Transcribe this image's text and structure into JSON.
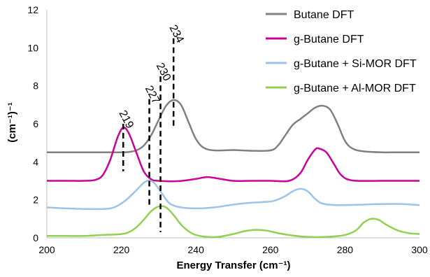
{
  "chart_data": {
    "type": "line",
    "title": "",
    "xlabel": "Energy Transfer (cm⁻¹)",
    "ylabel": "(cm⁻¹)⁻¹",
    "xlim": [
      200,
      300
    ],
    "ylim": [
      0,
      12
    ],
    "xticks": [
      200,
      220,
      240,
      260,
      280,
      300
    ],
    "yticks": [
      0,
      2,
      4,
      6,
      8,
      10,
      12
    ],
    "grid": false,
    "legend": "top-right",
    "series": [
      {
        "name": "Butane DFT",
        "color": "#808080",
        "points": [
          [
            200,
            4.5
          ],
          [
            205,
            4.5
          ],
          [
            210,
            4.5
          ],
          [
            215,
            4.5
          ],
          [
            220,
            4.5
          ],
          [
            222,
            4.52
          ],
          [
            224,
            4.6
          ],
          [
            226,
            4.85
          ],
          [
            228,
            5.4
          ],
          [
            230,
            6.2
          ],
          [
            232,
            6.95
          ],
          [
            234,
            7.25
          ],
          [
            236,
            7.0
          ],
          [
            238,
            6.1
          ],
          [
            240,
            5.2
          ],
          [
            242,
            4.75
          ],
          [
            245,
            4.6
          ],
          [
            250,
            4.62
          ],
          [
            255,
            4.58
          ],
          [
            260,
            4.6
          ],
          [
            262,
            4.85
          ],
          [
            264,
            5.4
          ],
          [
            266,
            5.95
          ],
          [
            268,
            6.25
          ],
          [
            270,
            6.55
          ],
          [
            272,
            6.85
          ],
          [
            274,
            6.95
          ],
          [
            276,
            6.75
          ],
          [
            278,
            6.0
          ],
          [
            280,
            5.1
          ],
          [
            282,
            4.7
          ],
          [
            285,
            4.55
          ],
          [
            290,
            4.5
          ],
          [
            295,
            4.5
          ],
          [
            300,
            4.5
          ]
        ]
      },
      {
        "name": "g-Butane DFT",
        "color": "#cc0099",
        "points": [
          [
            200,
            3.0
          ],
          [
            205,
            3.0
          ],
          [
            210,
            3.0
          ],
          [
            213,
            3.05
          ],
          [
            215,
            3.3
          ],
          [
            217,
            4.1
          ],
          [
            219,
            5.3
          ],
          [
            220.5,
            5.8
          ],
          [
            222,
            5.5
          ],
          [
            224,
            4.5
          ],
          [
            226,
            3.5
          ],
          [
            228,
            3.08
          ],
          [
            230,
            3.0
          ],
          [
            235,
            2.98
          ],
          [
            240,
            3.1
          ],
          [
            243,
            3.2
          ],
          [
            246,
            3.12
          ],
          [
            250,
            3.0
          ],
          [
            255,
            3.0
          ],
          [
            260,
            3.0
          ],
          [
            265,
            3.0
          ],
          [
            268,
            3.4
          ],
          [
            270,
            4.1
          ],
          [
            272,
            4.65
          ],
          [
            273,
            4.7
          ],
          [
            275,
            4.5
          ],
          [
            277,
            3.9
          ],
          [
            279,
            3.3
          ],
          [
            282,
            3.02
          ],
          [
            290,
            3.0
          ],
          [
            300,
            3.0
          ]
        ]
      },
      {
        "name": "g-Butane + Si-MOR DFT",
        "color": "#9dc3e6",
        "points": [
          [
            200,
            1.6
          ],
          [
            205,
            1.55
          ],
          [
            210,
            1.52
          ],
          [
            215,
            1.52
          ],
          [
            218,
            1.6
          ],
          [
            221,
            1.95
          ],
          [
            224,
            2.5
          ],
          [
            226,
            2.9
          ],
          [
            227.5,
            3.02
          ],
          [
            229,
            2.85
          ],
          [
            231,
            2.3
          ],
          [
            233,
            1.8
          ],
          [
            236,
            1.6
          ],
          [
            240,
            1.55
          ],
          [
            245,
            1.6
          ],
          [
            250,
            1.75
          ],
          [
            255,
            1.85
          ],
          [
            258,
            1.88
          ],
          [
            261,
            1.95
          ],
          [
            264,
            2.2
          ],
          [
            266,
            2.45
          ],
          [
            268,
            2.58
          ],
          [
            270,
            2.45
          ],
          [
            272,
            2.05
          ],
          [
            274,
            1.8
          ],
          [
            278,
            1.72
          ],
          [
            285,
            1.75
          ],
          [
            290,
            1.78
          ],
          [
            295,
            1.78
          ],
          [
            300,
            1.72
          ]
        ]
      },
      {
        "name": "g-Butane + Al-MOR DFT",
        "color": "#92d050",
        "points": [
          [
            200,
            0.1
          ],
          [
            205,
            0.1
          ],
          [
            210,
            0.1
          ],
          [
            215,
            0.15
          ],
          [
            220,
            0.2
          ],
          [
            222,
            0.3
          ],
          [
            224,
            0.55
          ],
          [
            226,
            0.95
          ],
          [
            228,
            1.4
          ],
          [
            230,
            1.65
          ],
          [
            232,
            1.6
          ],
          [
            234,
            1.2
          ],
          [
            236,
            0.7
          ],
          [
            238,
            0.35
          ],
          [
            240,
            0.15
          ],
          [
            243,
            0.05
          ],
          [
            246,
            0.05
          ],
          [
            250,
            0.2
          ],
          [
            253,
            0.35
          ],
          [
            256,
            0.42
          ],
          [
            259,
            0.38
          ],
          [
            262,
            0.25
          ],
          [
            266,
            0.12
          ],
          [
            270,
            0.05
          ],
          [
            275,
            0.05
          ],
          [
            280,
            0.15
          ],
          [
            283,
            0.4
          ],
          [
            285,
            0.8
          ],
          [
            287,
            1.0
          ],
          [
            289,
            0.95
          ],
          [
            291,
            0.7
          ],
          [
            294,
            0.4
          ],
          [
            297,
            0.25
          ],
          [
            300,
            0.2
          ]
        ]
      }
    ],
    "annotations": [
      {
        "label": "219",
        "x": 220.5,
        "y_top": 6.0,
        "y_bottom": 3.5
      },
      {
        "label": "227",
        "x": 227.5,
        "y_top": 7.3,
        "y_bottom": 1.7
      },
      {
        "label": "230",
        "x": 230.5,
        "y_top": 8.5,
        "y_bottom": 0.3
      },
      {
        "label": "234",
        "x": 234.0,
        "y_top": 10.5,
        "y_bottom": 5.8
      }
    ]
  }
}
